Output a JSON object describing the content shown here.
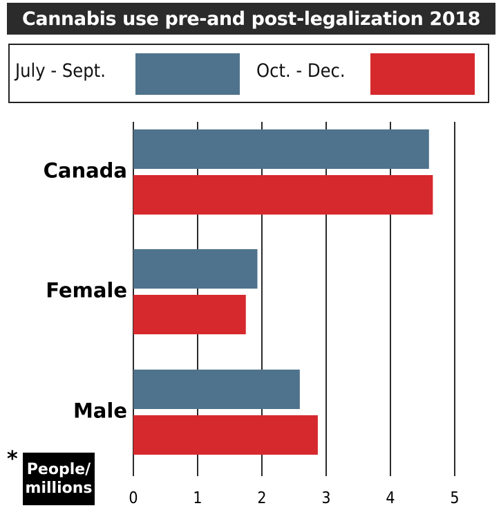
{
  "title": "Cannabis use pre-and post-legalization 2018",
  "unit_note": {
    "asterisk": "*",
    "line1": "People/",
    "line2": "millions"
  },
  "chart_data": {
    "type": "bar",
    "orientation": "horizontal",
    "title": "Cannabis use pre-and post-legalization 2018",
    "categories": [
      "Canada",
      "Female",
      "Male"
    ],
    "series": [
      {
        "name": "July - Sept.",
        "color": "#4f738c",
        "values": [
          4.6,
          1.93,
          2.59
        ]
      },
      {
        "name": "Oct. - Dec.",
        "color": "#d6292d",
        "values": [
          4.66,
          1.75,
          2.87
        ]
      }
    ],
    "xlim": [
      0,
      5
    ],
    "xticks": [
      "0",
      "1",
      "2",
      "3",
      "4",
      "5"
    ],
    "grid": true,
    "legend_position": "top"
  }
}
